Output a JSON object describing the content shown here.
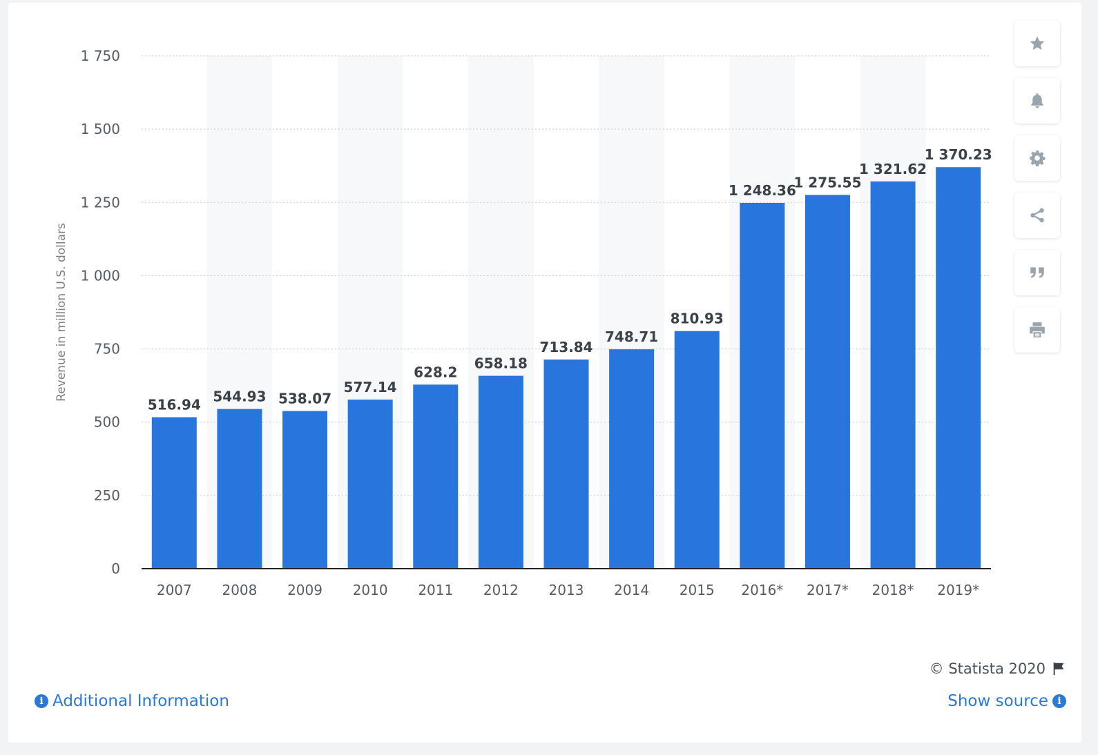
{
  "chart_data": {
    "type": "bar",
    "categories": [
      "2007",
      "2008",
      "2009",
      "2010",
      "2011",
      "2012",
      "2013",
      "2014",
      "2015",
      "2016*",
      "2017*",
      "2018*",
      "2019*"
    ],
    "values": [
      516.94,
      544.93,
      538.07,
      577.14,
      628.2,
      658.18,
      713.84,
      748.71,
      810.93,
      1248.36,
      1275.55,
      1321.62,
      1370.23
    ],
    "value_labels": [
      "516.94",
      "544.93",
      "538.07",
      "577.14",
      "628.2",
      "658.18",
      "713.84",
      "748.71",
      "810.93",
      "1 248.36",
      "1 275.55",
      "1 321.62",
      "1 370.23"
    ],
    "ylabel": "Revenue in million U.S. dollars",
    "xlabel": "",
    "ylim": [
      0,
      1750
    ],
    "yticks": [
      0,
      250,
      500,
      750,
      1000,
      1250,
      1500,
      1750
    ],
    "ytick_labels": [
      "0",
      "250",
      "500",
      "750",
      "1 000",
      "1 250",
      "1 500",
      "1 750"
    ],
    "grid": true,
    "bar_color": "#2876dd",
    "band_color": "#f7f8f9"
  },
  "tools": {
    "favorite_icon": "star-icon",
    "notify_icon": "bell-icon",
    "settings_icon": "gear-icon",
    "share_icon": "share-icon",
    "cite_icon": "quote-icon",
    "print_icon": "print-icon"
  },
  "footer": {
    "copyright": "© Statista 2020",
    "additional_info": "Additional Information",
    "show_source": "Show source",
    "info_glyph": "i"
  }
}
